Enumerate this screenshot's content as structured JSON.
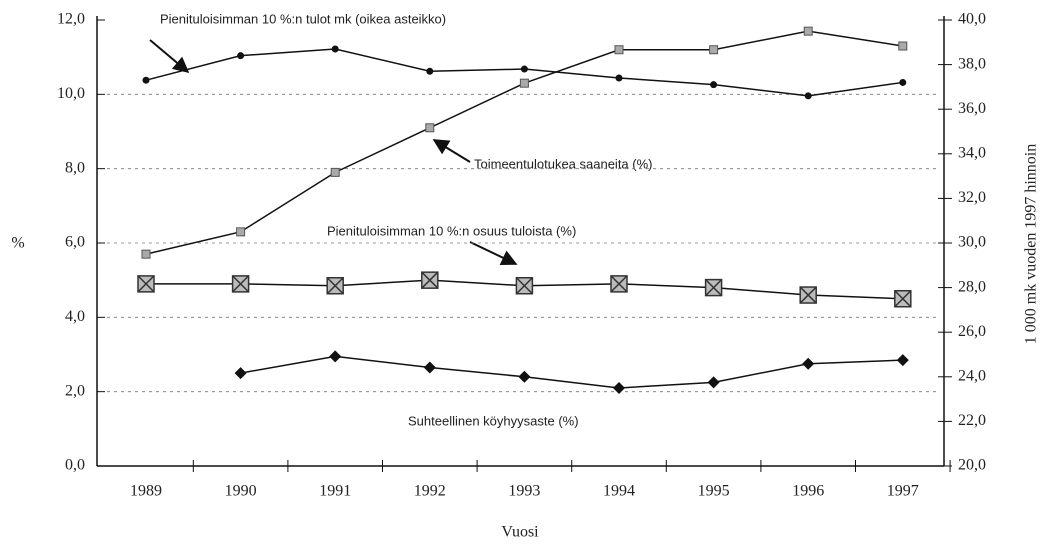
{
  "chart_data": {
    "type": "line",
    "categories": [
      "1989",
      "1990",
      "1991",
      "1992",
      "1993",
      "1994",
      "1995",
      "1996",
      "1997"
    ],
    "xlabel": "Vuosi",
    "ylabel": "%",
    "y2label": "1 000 mk vuoden 1997 hinnoin",
    "ylim": [
      0,
      12
    ],
    "yticks": [
      {
        "value": 0,
        "label": "0,0"
      },
      {
        "value": 2,
        "label": "2,0"
      },
      {
        "value": 4,
        "label": "4,0"
      },
      {
        "value": 6,
        "label": "6,0"
      },
      {
        "value": 8,
        "label": "8,0"
      },
      {
        "value": 10,
        "label": "10,0"
      },
      {
        "value": 12,
        "label": "12,0"
      }
    ],
    "y2lim": [
      20,
      40
    ],
    "y2ticks": [
      {
        "value": 20,
        "label": "20,0"
      },
      {
        "value": 22,
        "label": "22,0"
      },
      {
        "value": 24,
        "label": "24,0"
      },
      {
        "value": 26,
        "label": "26,0"
      },
      {
        "value": 28,
        "label": "28,0"
      },
      {
        "value": 30,
        "label": "30,0"
      },
      {
        "value": 32,
        "label": "32,0"
      },
      {
        "value": 34,
        "label": "34,0"
      },
      {
        "value": 36,
        "label": "36,0"
      },
      {
        "value": 38,
        "label": "38,0"
      },
      {
        "value": 40,
        "label": "40,0"
      }
    ],
    "grid": true,
    "series": [
      {
        "name": "Pienituloisimman 10 %:n tulot mk (oikea asteikko)",
        "color": "#111",
        "marker": "circle",
        "axis": "y2",
        "values": [
          37.3,
          38.4,
          38.7,
          37.7,
          37.8,
          37.4,
          37.1,
          36.6,
          37.2
        ]
      },
      {
        "name": "Toimeentulotukea saaneita (%)",
        "color": "#555",
        "marker": "square",
        "values": [
          5.7,
          6.3,
          7.9,
          9.1,
          10.3,
          11.2,
          11.2,
          11.7,
          11.3
        ]
      },
      {
        "name": "Pienituloisimman 10 %:n osuus tuloista (%)",
        "color": "#333",
        "marker": "bigsquare",
        "values": [
          4.9,
          4.9,
          4.85,
          5.0,
          4.85,
          4.9,
          4.8,
          4.6,
          4.5
        ]
      },
      {
        "name": "Suhteellinen köyhyysaste (%)",
        "color": "#111",
        "marker": "diamond",
        "values": [
          null,
          2.5,
          2.95,
          2.65,
          2.4,
          2.1,
          2.25,
          2.75,
          2.85
        ]
      }
    ]
  }
}
